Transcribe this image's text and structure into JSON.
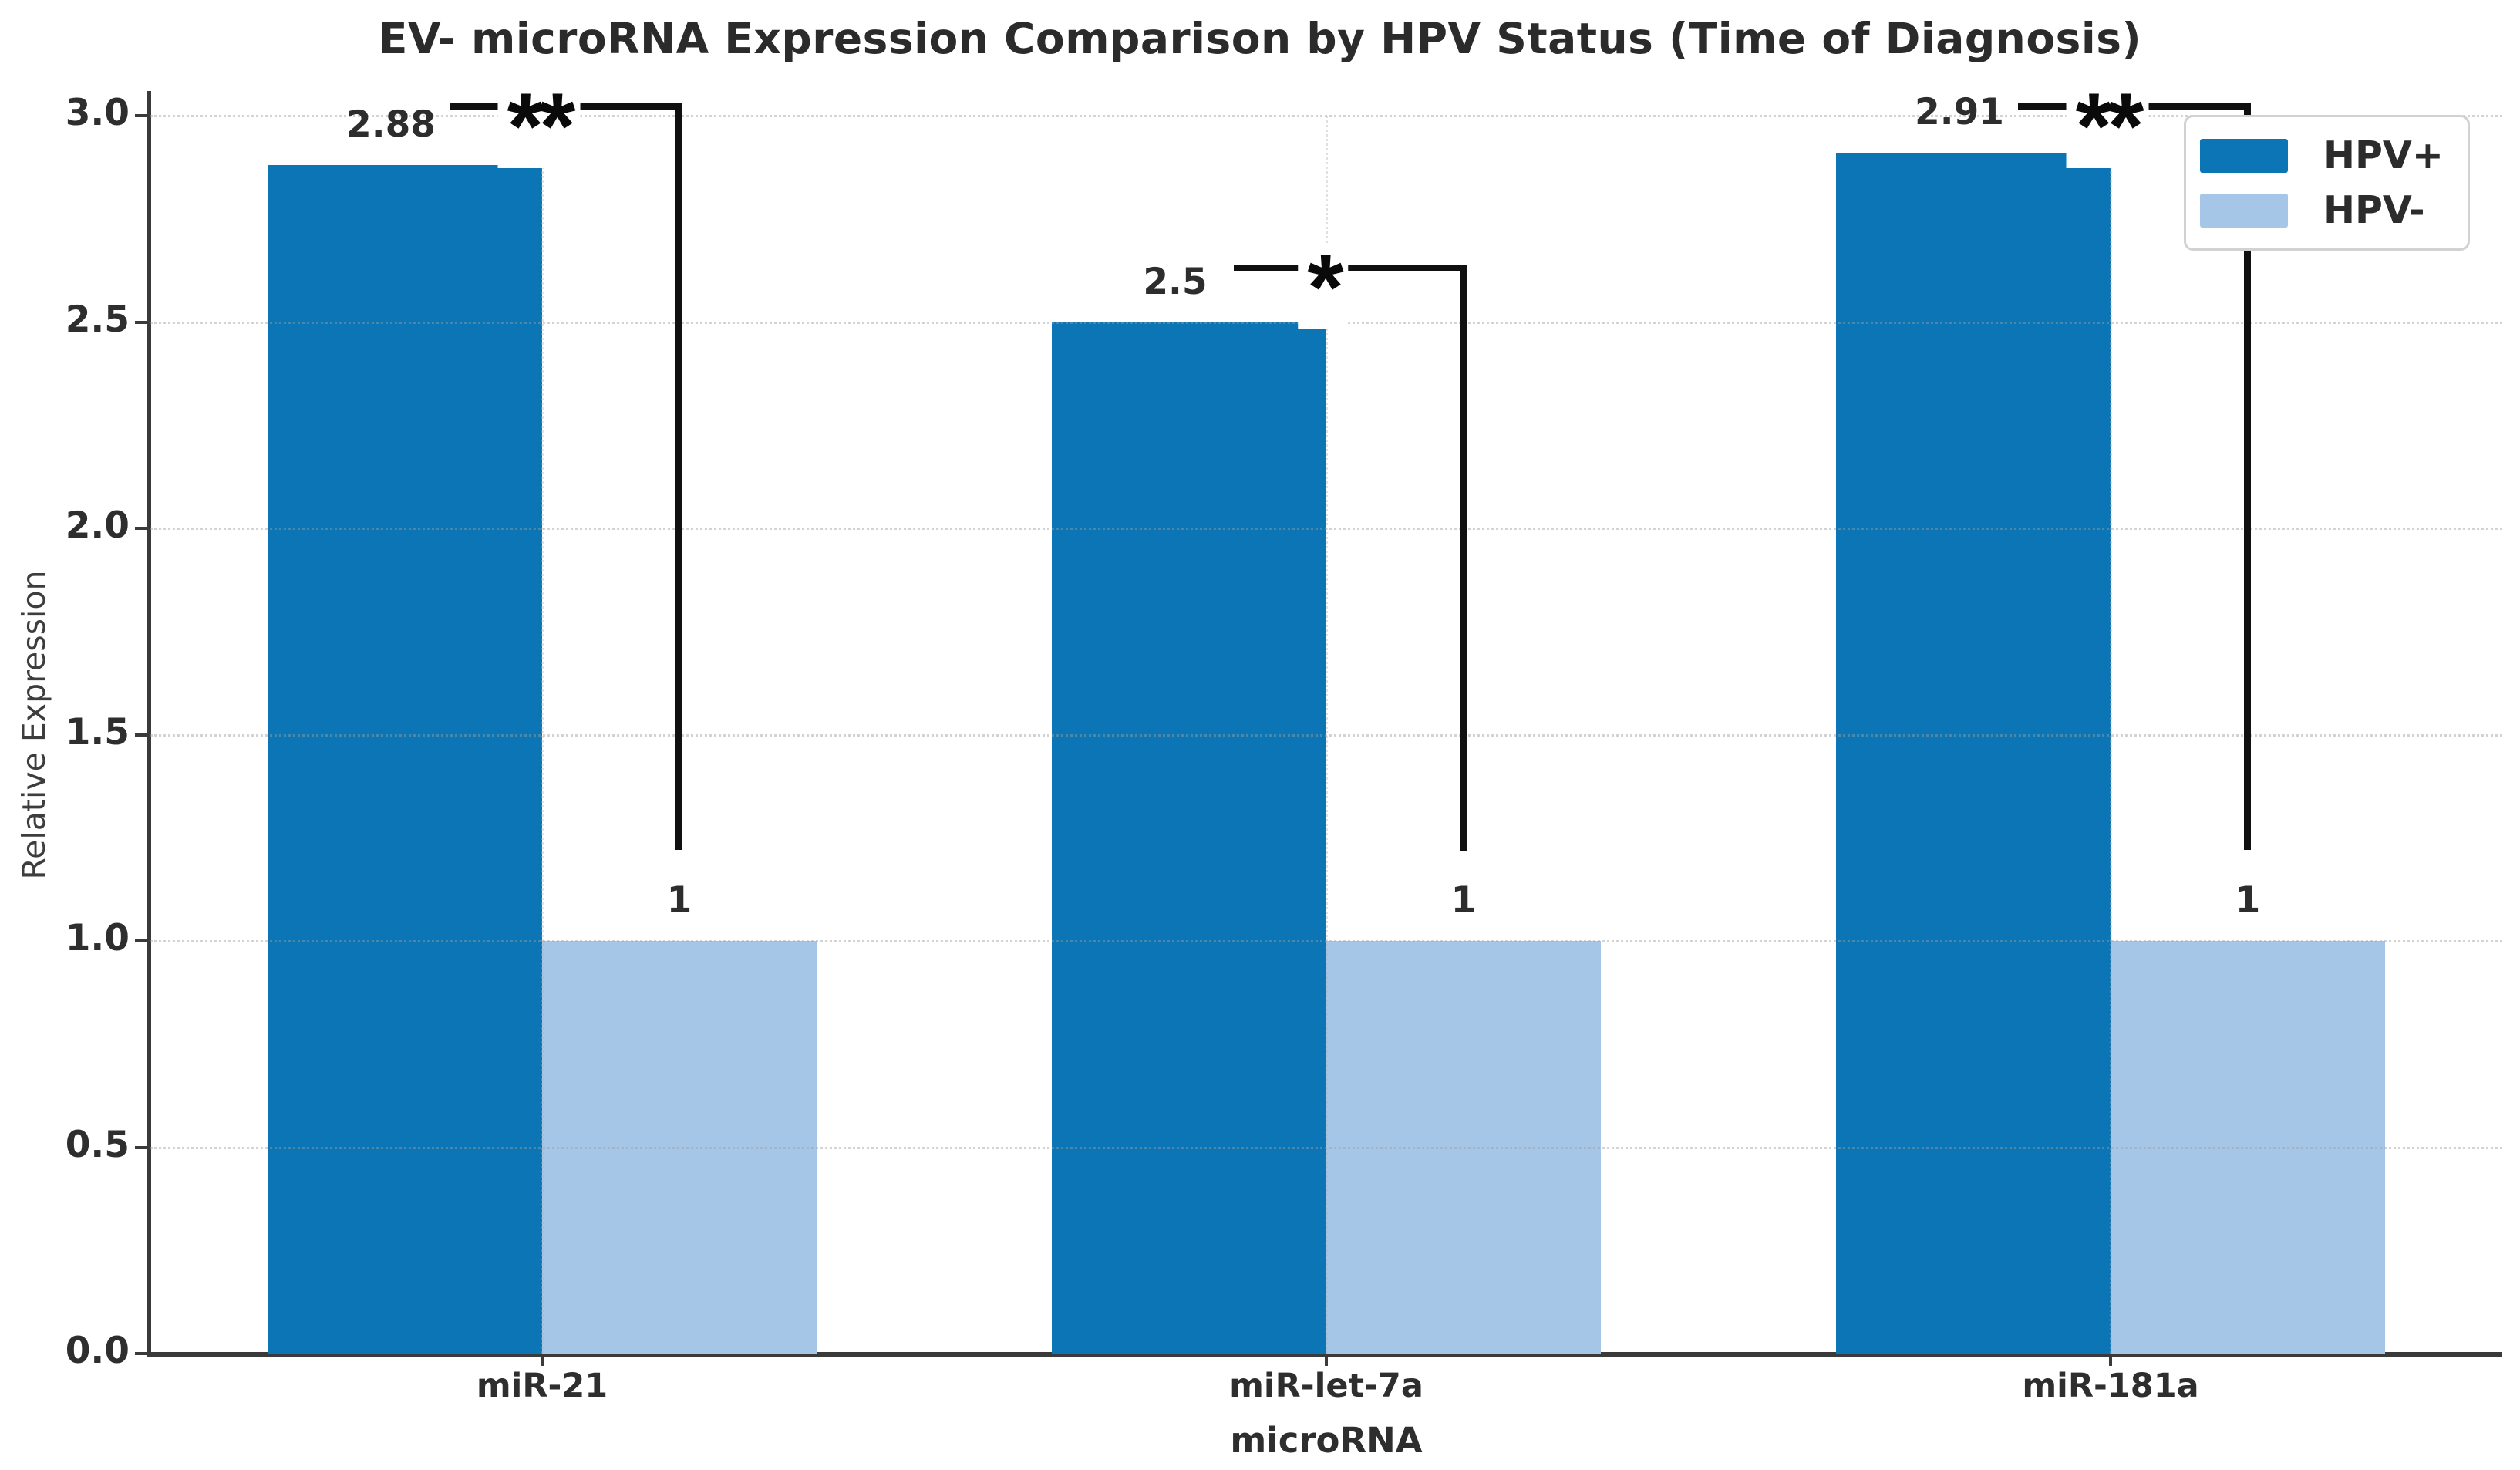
{
  "chart_data": {
    "type": "bar",
    "title": "EV- microRNA Expression Comparison by HPV Status (Time of Diagnosis)",
    "xlabel": "microRNA",
    "ylabel": "Relative Expression",
    "categories": [
      "miR-21",
      "miR-let-7a",
      "miR-181a"
    ],
    "series": [
      {
        "name": "HPV+",
        "color": "#0c75b5",
        "values": [
          2.88,
          2.5,
          2.91
        ],
        "value_labels": [
          "2.88",
          "2.5",
          "2.91"
        ]
      },
      {
        "name": "HPV-",
        "color": "#a6c6e8",
        "values": [
          1,
          1,
          1
        ],
        "value_labels": [
          "1",
          "1",
          "1"
        ]
      }
    ],
    "ylim": [
      0,
      3.05
    ],
    "yticks": [
      {
        "value": 0.0,
        "label": "0.0"
      },
      {
        "value": 0.5,
        "label": "0.5"
      },
      {
        "value": 1.0,
        "label": "1.0"
      },
      {
        "value": 1.5,
        "label": "1.5"
      },
      {
        "value": 2.0,
        "label": "2.0"
      },
      {
        "value": 2.5,
        "label": "2.5"
      },
      {
        "value": 3.0,
        "label": "3.0"
      }
    ],
    "grid": {
      "horizontal": "dotted",
      "vertical": "dotted-at-category-centers"
    },
    "legend": {
      "position": "upper right",
      "entries": [
        "HPV+",
        "HPV-"
      ]
    },
    "significance_annotations": [
      {
        "category": "miR-21",
        "symbol": "**",
        "bracket_top_value": 3.03,
        "bracket_drop_value": 1.22
      },
      {
        "category": "miR-let-7a",
        "symbol": "*",
        "bracket_top_value": 2.64,
        "bracket_drop_value": 1.22
      },
      {
        "category": "miR-181a",
        "symbol": "**",
        "bracket_top_value": 3.03,
        "bracket_drop_value": 1.22
      }
    ]
  }
}
